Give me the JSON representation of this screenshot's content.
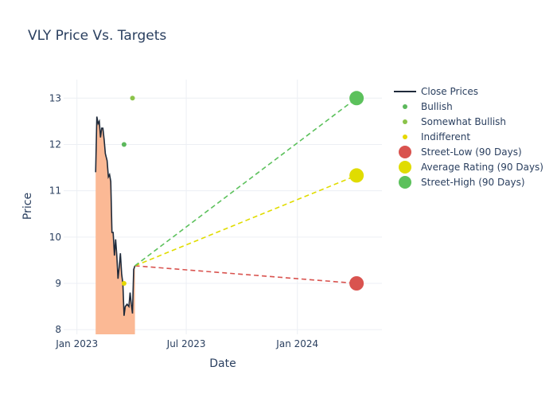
{
  "chart_data": {
    "type": "line",
    "title": "VLY Price Vs. Targets",
    "xlabel": "Date",
    "ylabel": "Price",
    "xlim": [
      "2022-12-10",
      "2024-05-20"
    ],
    "ylim": [
      7.9,
      13.4
    ],
    "x_ticks": [
      {
        "date": "2023-01-01",
        "label": "Jan 2023"
      },
      {
        "date": "2023-07-01",
        "label": "Jul 2023"
      },
      {
        "date": "2024-01-01",
        "label": "Jan 2024"
      }
    ],
    "y_ticks": [
      8,
      9,
      10,
      11,
      12,
      13
    ],
    "grid": true,
    "legend_position": "right",
    "series": [
      {
        "name": "Close Prices",
        "kind": "line-area",
        "color": "#1f2a3a",
        "fill_color": "#fbb995",
        "points": [
          {
            "date": "2023-02-01",
            "value": 11.4
          },
          {
            "date": "2023-02-03",
            "value": 12.6
          },
          {
            "date": "2023-02-05",
            "value": 12.45
          },
          {
            "date": "2023-02-07",
            "value": 12.5
          },
          {
            "date": "2023-02-09",
            "value": 12.15
          },
          {
            "date": "2023-02-11",
            "value": 12.35
          },
          {
            "date": "2023-02-13",
            "value": 12.35
          },
          {
            "date": "2023-02-15",
            "value": 12.1
          },
          {
            "date": "2023-02-17",
            "value": 11.8
          },
          {
            "date": "2023-02-20",
            "value": 11.65
          },
          {
            "date": "2023-02-22",
            "value": 11.3
          },
          {
            "date": "2023-02-24",
            "value": 11.35
          },
          {
            "date": "2023-02-26",
            "value": 11.2
          },
          {
            "date": "2023-02-28",
            "value": 10.1
          },
          {
            "date": "2023-03-02",
            "value": 10.1
          },
          {
            "date": "2023-03-04",
            "value": 9.6
          },
          {
            "date": "2023-03-06",
            "value": 9.95
          },
          {
            "date": "2023-03-08",
            "value": 9.6
          },
          {
            "date": "2023-03-10",
            "value": 9.1
          },
          {
            "date": "2023-03-12",
            "value": 9.35
          },
          {
            "date": "2023-03-14",
            "value": 9.65
          },
          {
            "date": "2023-03-16",
            "value": 9.2
          },
          {
            "date": "2023-03-18",
            "value": 9.0
          },
          {
            "date": "2023-03-20",
            "value": 8.3
          },
          {
            "date": "2023-03-22",
            "value": 8.5
          },
          {
            "date": "2023-03-25",
            "value": 8.55
          },
          {
            "date": "2023-03-28",
            "value": 8.5
          },
          {
            "date": "2023-03-30",
            "value": 8.8
          },
          {
            "date": "2023-04-01",
            "value": 8.55
          },
          {
            "date": "2023-04-03",
            "value": 8.35
          },
          {
            "date": "2023-04-05",
            "value": 9.3
          },
          {
            "date": "2023-04-07",
            "value": 9.38
          }
        ]
      },
      {
        "name": "Bullish",
        "kind": "marker",
        "color": "#5cb85c",
        "size": 3,
        "points": [
          {
            "date": "2023-03-20",
            "value": 12.0
          }
        ]
      },
      {
        "name": "Somewhat Bullish",
        "kind": "marker",
        "color": "#8bc34a",
        "size": 3,
        "points": [
          {
            "date": "2023-04-03",
            "value": 13.0
          }
        ]
      },
      {
        "name": "Indifferent",
        "kind": "marker",
        "color": "#e6d800",
        "size": 3,
        "points": [
          {
            "date": "2023-03-20",
            "value": 9.0
          }
        ]
      },
      {
        "name": "Street-Low (90 Days)",
        "kind": "target",
        "color": "#d9534f",
        "size": 9,
        "points": [
          {
            "date": "2024-04-08",
            "value": 9.0
          }
        ],
        "line_from": {
          "date": "2023-04-07",
          "value": 9.38
        }
      },
      {
        "name": "Average Rating (90 Days)",
        "kind": "target",
        "color": "#e0dc00",
        "size": 9,
        "points": [
          {
            "date": "2024-04-08",
            "value": 11.33
          }
        ],
        "line_from": {
          "date": "2023-04-07",
          "value": 9.38
        }
      },
      {
        "name": "Street-High (90 Days)",
        "kind": "target",
        "color": "#5cc15c",
        "size": 9,
        "points": [
          {
            "date": "2024-04-08",
            "value": 13.0
          }
        ],
        "line_from": {
          "date": "2023-04-07",
          "value": 9.38
        }
      }
    ]
  }
}
